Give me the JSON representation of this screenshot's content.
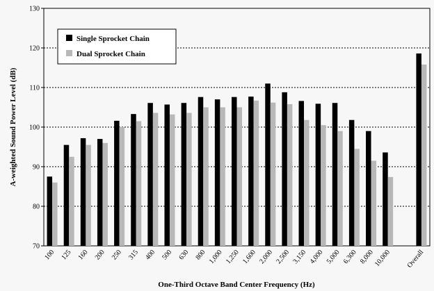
{
  "chart_data": {
    "type": "bar",
    "title": "",
    "xlabel": "One-Third Octave Band Center Frequency (Hz)",
    "ylabel": "A-weighted Sound Power Level (dB)",
    "ylim": [
      70,
      130
    ],
    "yticks": [
      70,
      80,
      90,
      100,
      110,
      120,
      130
    ],
    "grid": "horizontal-dotted",
    "legend_position": "top-left",
    "categories": [
      "100",
      "125",
      "160",
      "200",
      "250",
      "315",
      "400",
      "500",
      "630",
      "800",
      "1,000",
      "1,250",
      "1,600",
      "2,000",
      "2,500",
      "3,150",
      "4,000",
      "5,000",
      "6,300",
      "8,000",
      "10,000",
      "",
      "Overall"
    ],
    "series": [
      {
        "name": "Single Sprocket Chain",
        "color": "#000000",
        "values": [
          87.5,
          95.5,
          97.2,
          97.0,
          101.6,
          103.3,
          106.1,
          105.7,
          106.1,
          107.6,
          107.0,
          107.6,
          107.7,
          111.0,
          108.8,
          106.6,
          105.9,
          106.1,
          101.8,
          99.0,
          93.6,
          null,
          118.6
        ]
      },
      {
        "name": "Dual Sprocket Chain",
        "color": "#b8b8b8",
        "values": [
          86.0,
          92.5,
          95.5,
          96.0,
          100.0,
          101.5,
          103.6,
          103.2,
          103.6,
          105.0,
          105.0,
          105.0,
          106.7,
          106.2,
          105.8,
          101.8,
          100.5,
          99.0,
          94.5,
          91.5,
          87.4,
          null,
          115.8
        ]
      }
    ]
  }
}
